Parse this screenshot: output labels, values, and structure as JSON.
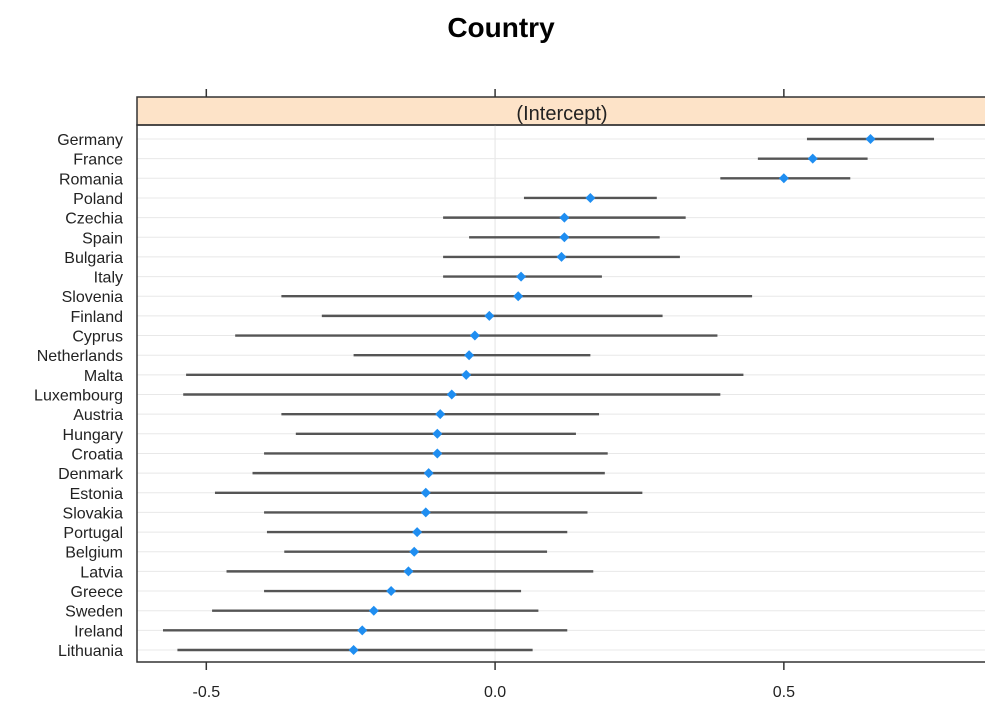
{
  "chart_data": {
    "type": "dotplot",
    "title": "Country",
    "panel_label": "(Intercept)",
    "xlabel": "",
    "ylabel": "",
    "xlim": [
      -0.62,
      0.85
    ],
    "x_ticks": [
      -0.5,
      0.0,
      0.5
    ],
    "x_tick_labels": [
      "-0.5",
      "0.0",
      "0.5"
    ],
    "grid": true,
    "colors": {
      "point": "#1f8ef1",
      "interval": "#555555",
      "strip": "#fde3c8",
      "grid": "#e8e8e8"
    },
    "categories": [
      "Germany",
      "France",
      "Romania",
      "Poland",
      "Czechia",
      "Spain",
      "Bulgaria",
      "Italy",
      "Slovenia",
      "Finland",
      "Cyprus",
      "Netherlands",
      "Malta",
      "Luxembourg",
      "Austria",
      "Hungary",
      "Croatia",
      "Denmark",
      "Estonia",
      "Slovakia",
      "Portugal",
      "Belgium",
      "Latvia",
      "Greece",
      "Sweden",
      "Ireland",
      "Lithuania"
    ],
    "estimate": [
      0.65,
      0.55,
      0.5,
      0.165,
      0.12,
      0.12,
      0.115,
      0.045,
      0.04,
      -0.01,
      -0.035,
      -0.045,
      -0.05,
      -0.075,
      -0.095,
      -0.1,
      -0.1,
      -0.115,
      -0.12,
      -0.12,
      -0.135,
      -0.14,
      -0.15,
      -0.18,
      -0.21,
      -0.23,
      -0.245
    ],
    "lower": [
      0.54,
      0.455,
      0.39,
      0.05,
      -0.09,
      -0.045,
      -0.09,
      -0.09,
      -0.37,
      -0.3,
      -0.45,
      -0.245,
      -0.535,
      -0.54,
      -0.37,
      -0.345,
      -0.4,
      -0.42,
      -0.485,
      -0.4,
      -0.395,
      -0.365,
      -0.465,
      -0.4,
      -0.49,
      -0.575,
      -0.55
    ],
    "upper": [
      0.76,
      0.645,
      0.615,
      0.28,
      0.33,
      0.285,
      0.32,
      0.185,
      0.445,
      0.29,
      0.385,
      0.165,
      0.43,
      0.39,
      0.18,
      0.14,
      0.195,
      0.19,
      0.255,
      0.16,
      0.125,
      0.09,
      0.17,
      0.045,
      0.075,
      0.125,
      0.065
    ]
  }
}
